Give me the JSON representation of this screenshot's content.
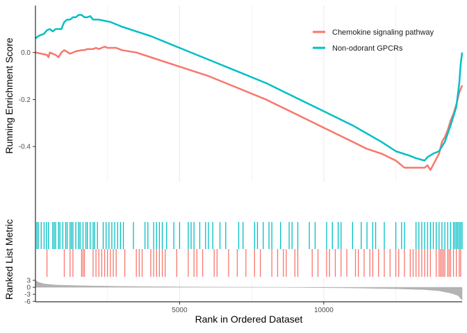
{
  "chart_data": {
    "type": "line",
    "subtype": "gsea-enrichment-plot",
    "xlabel": "Rank in Ordered Dataset",
    "xlim": [
      0,
      14800
    ],
    "x_ticks": [
      5000,
      10000
    ],
    "x_tick_labels": [
      "5000",
      "10000"
    ],
    "grid": "vertical major and minor lines",
    "legend_position": "top-right",
    "colors": {
      "chemokine": "#F8766D",
      "gpcr": "#00BFC4",
      "metric": "#b3b3b3",
      "grid": "#ebebeb",
      "axis": "#000000"
    },
    "panels": {
      "running_score": {
        "ylabel": "Running Enrichment Score",
        "ylim": [
          -0.55,
          0.2
        ],
        "y_ticks": [
          0.0,
          -0.2,
          -0.4
        ],
        "y_tick_labels": [
          "0.0",
          "-0.2",
          "-0.4"
        ]
      },
      "metric": {
        "ylabel": "Ranked List Metric",
        "ylim": [
          -6.2,
          4.2
        ],
        "y_ticks": [
          3,
          0,
          -3,
          -6
        ],
        "y_tick_labels": [
          "3",
          "0",
          "-3",
          "-6"
        ],
        "fill_color": "#b3b3b3",
        "values": [
          [
            0,
            3.0
          ],
          [
            100,
            2.2
          ],
          [
            300,
            1.5
          ],
          [
            700,
            1.0
          ],
          [
            1500,
            0.7
          ],
          [
            3000,
            0.4
          ],
          [
            5000,
            0.2
          ],
          [
            7000,
            0.05
          ],
          [
            7800,
            0.0
          ],
          [
            9000,
            -0.08
          ],
          [
            11000,
            -0.3
          ],
          [
            12500,
            -0.6
          ],
          [
            13500,
            -1.0
          ],
          [
            14000,
            -1.5
          ],
          [
            14400,
            -2.5
          ],
          [
            14650,
            -3.5
          ],
          [
            14800,
            -5.5
          ]
        ]
      }
    },
    "series": [
      {
        "name": "Chemokine signaling pathway",
        "color": "#F8766D",
        "values": [
          [
            0,
            0.0
          ],
          [
            400,
            -0.01
          ],
          [
            450,
            -0.02
          ],
          [
            500,
            0.0
          ],
          [
            700,
            -0.01
          ],
          [
            800,
            -0.02
          ],
          [
            900,
            0.0
          ],
          [
            1000,
            0.01
          ],
          [
            1200,
            -0.005
          ],
          [
            1400,
            0.005
          ],
          [
            1600,
            0.01
          ],
          [
            1700,
            0.01
          ],
          [
            1800,
            0.015
          ],
          [
            2000,
            0.015
          ],
          [
            2100,
            0.02
          ],
          [
            2200,
            0.015
          ],
          [
            2300,
            0.02
          ],
          [
            2400,
            0.025
          ],
          [
            2500,
            0.02
          ],
          [
            2800,
            0.02
          ],
          [
            3000,
            0.01
          ],
          [
            3500,
            0.0
          ],
          [
            4000,
            -0.02
          ],
          [
            5000,
            -0.06
          ],
          [
            6000,
            -0.1
          ],
          [
            7000,
            -0.15
          ],
          [
            8000,
            -0.2
          ],
          [
            9000,
            -0.26
          ],
          [
            10000,
            -0.32
          ],
          [
            11000,
            -0.38
          ],
          [
            11500,
            -0.41
          ],
          [
            12000,
            -0.43
          ],
          [
            12500,
            -0.46
          ],
          [
            12800,
            -0.49
          ],
          [
            13000,
            -0.49
          ],
          [
            13500,
            -0.49
          ],
          [
            13600,
            -0.48
          ],
          [
            13700,
            -0.5
          ],
          [
            14000,
            -0.43
          ],
          [
            14100,
            -0.38
          ],
          [
            14200,
            -0.36
          ],
          [
            14300,
            -0.33
          ],
          [
            14400,
            -0.29
          ],
          [
            14500,
            -0.26
          ],
          [
            14600,
            -0.22
          ],
          [
            14700,
            -0.17
          ],
          [
            14800,
            -0.14
          ]
        ]
      },
      {
        "name": "Non-odorant GPCRs",
        "color": "#00BFC4",
        "values": [
          [
            0,
            0.06
          ],
          [
            100,
            0.07
          ],
          [
            200,
            0.075
          ],
          [
            300,
            0.08
          ],
          [
            400,
            0.095
          ],
          [
            500,
            0.1
          ],
          [
            600,
            0.09
          ],
          [
            700,
            0.1
          ],
          [
            800,
            0.1
          ],
          [
            900,
            0.1
          ],
          [
            1000,
            0.13
          ],
          [
            1100,
            0.14
          ],
          [
            1200,
            0.14
          ],
          [
            1300,
            0.15
          ],
          [
            1400,
            0.15
          ],
          [
            1500,
            0.16
          ],
          [
            1600,
            0.16
          ],
          [
            1700,
            0.15
          ],
          [
            1800,
            0.15
          ],
          [
            1900,
            0.155
          ],
          [
            2000,
            0.14
          ],
          [
            2200,
            0.14
          ],
          [
            2400,
            0.135
          ],
          [
            2600,
            0.13
          ],
          [
            2800,
            0.12
          ],
          [
            3000,
            0.11
          ],
          [
            3500,
            0.09
          ],
          [
            4000,
            0.07
          ],
          [
            5000,
            0.02
          ],
          [
            6000,
            -0.03
          ],
          [
            7000,
            -0.08
          ],
          [
            8000,
            -0.13
          ],
          [
            9000,
            -0.19
          ],
          [
            10000,
            -0.25
          ],
          [
            11000,
            -0.31
          ],
          [
            12000,
            -0.38
          ],
          [
            12500,
            -0.42
          ],
          [
            13000,
            -0.44
          ],
          [
            13200,
            -0.45
          ],
          [
            13500,
            -0.46
          ],
          [
            13600,
            -0.445
          ],
          [
            13800,
            -0.43
          ],
          [
            14000,
            -0.42
          ],
          [
            14200,
            -0.38
          ],
          [
            14400,
            -0.31
          ],
          [
            14500,
            -0.27
          ],
          [
            14600,
            -0.23
          ],
          [
            14700,
            -0.13
          ],
          [
            14750,
            -0.05
          ],
          [
            14800,
            0.0
          ]
        ]
      }
    ],
    "hits": {
      "gpcr": [
        50,
        100,
        200,
        300,
        380,
        450,
        600,
        650,
        700,
        800,
        850,
        950,
        1050,
        1100,
        1200,
        1250,
        1300,
        1400,
        1500,
        1550,
        1650,
        1750,
        1800,
        1900,
        2000,
        2050,
        2150,
        2350,
        2450,
        2550,
        2650,
        2750,
        2850,
        2950,
        3050,
        3400,
        3800,
        3900,
        4100,
        4200,
        4300,
        4400,
        4550,
        4800,
        5000,
        5300,
        5400,
        5500,
        5700,
        5900,
        6000,
        6150,
        6400,
        6600,
        7050,
        7200,
        7600,
        7700,
        7900,
        8100,
        8200,
        8500,
        8800,
        8900,
        9100,
        9500,
        9700,
        10100,
        10300,
        10500,
        10600,
        11000,
        11300,
        11500,
        11700,
        11800,
        12100,
        12500,
        12700,
        12800,
        13200,
        13300,
        13400,
        13500,
        13600,
        13700,
        13800,
        13900,
        14000,
        14100,
        14200,
        14300,
        14400,
        14500,
        14550,
        14600,
        14650,
        14700,
        14750,
        14800
      ],
      "chemokine": [
        400,
        1000,
        1200,
        1300,
        1600,
        1650,
        1700,
        2000,
        2100,
        2200,
        2300,
        2400,
        2500,
        2600,
        2700,
        2800,
        3100,
        3500,
        3600,
        3700,
        4000,
        4100,
        4200,
        4300,
        4400,
        4500,
        4900,
        5300,
        5500,
        5600,
        5800,
        6200,
        6300,
        6700,
        7000,
        7300,
        7600,
        7800,
        8200,
        8400,
        8600,
        8700,
        9000,
        9100,
        9600,
        9800,
        10100,
        10200,
        10400,
        10600,
        10800,
        11100,
        11200,
        11400,
        11600,
        11700,
        11900,
        12100,
        12300,
        12500,
        12600,
        12800,
        13000,
        13100,
        13200,
        13300,
        13400,
        13500,
        13600,
        13700,
        13900,
        14000,
        14050,
        14100,
        14150,
        14200,
        14300,
        14350,
        14400,
        14500,
        14600,
        14700,
        14750
      ]
    }
  }
}
